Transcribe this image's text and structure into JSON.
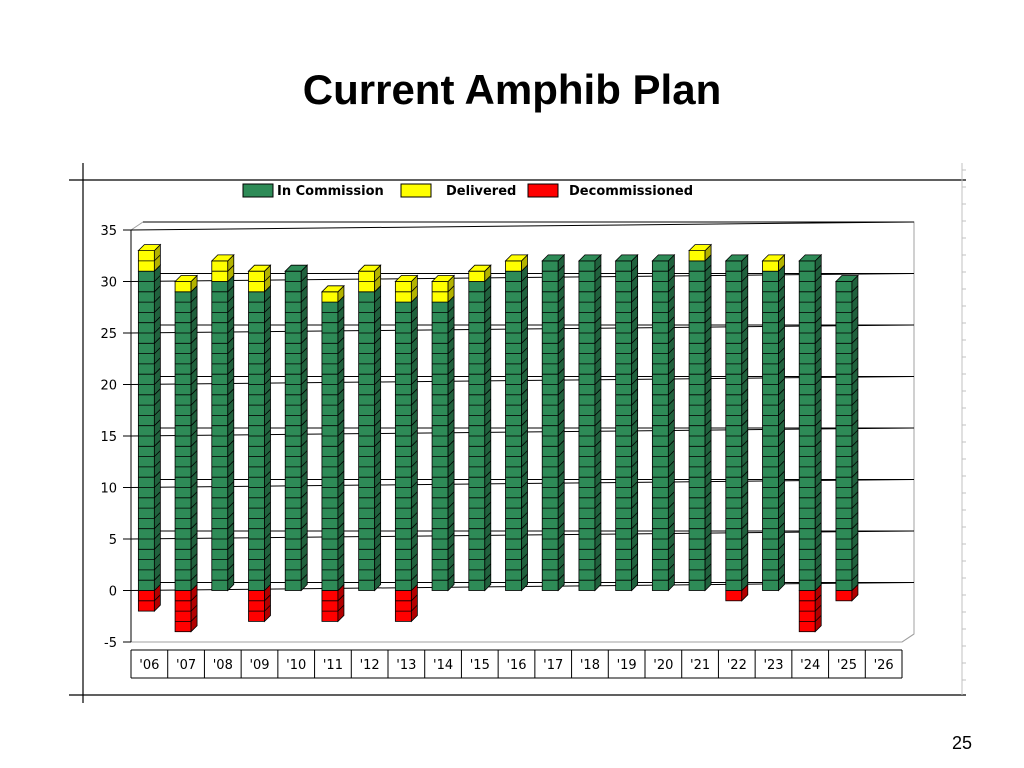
{
  "slide": {
    "title": "Current Amphib Plan",
    "page_number": "25"
  },
  "colors": {
    "in_commission": "#2e8b57",
    "delivered": "#ffff00",
    "decommissioned": "#ff0000",
    "background": "#ffffff"
  },
  "chart_data": {
    "type": "bar",
    "stacked": true,
    "three_d": true,
    "categories": [
      "'06",
      "'07",
      "'08",
      "'09",
      "'10",
      "'11",
      "'12",
      "'13",
      "'14",
      "'15",
      "'16",
      "'17",
      "'18",
      "'19",
      "'20",
      "'21",
      "'22",
      "'23",
      "'24",
      "'25",
      "'26"
    ],
    "series": [
      {
        "name": "In Commission",
        "color": "#2e8b57",
        "values": [
          31,
          29,
          30,
          29,
          31,
          28,
          29,
          28,
          28,
          30,
          31,
          32,
          32,
          32,
          32,
          32,
          32,
          31,
          32,
          30,
          0
        ]
      },
      {
        "name": "Delivered",
        "color": "#ffff00",
        "values": [
          2,
          1,
          2,
          2,
          0,
          1,
          2,
          2,
          2,
          1,
          1,
          0,
          0,
          0,
          0,
          1,
          0,
          1,
          0,
          0,
          0
        ]
      },
      {
        "name": "Decommissioned",
        "color": "#ff0000",
        "values": [
          -2,
          -4,
          0,
          -3,
          0,
          -3,
          0,
          -3,
          0,
          0,
          0,
          0,
          0,
          0,
          0,
          0,
          -1,
          0,
          -4,
          -1,
          0
        ]
      }
    ],
    "ylim": [
      -5,
      35
    ],
    "yticks": [
      -5,
      0,
      5,
      10,
      15,
      20,
      25,
      30,
      35
    ],
    "ytick_labels": [
      "-5",
      "0",
      "5",
      "10",
      "15",
      "20",
      "25",
      "30",
      "35"
    ],
    "grid": true,
    "legend_position": "top",
    "title": "",
    "xlabel": "",
    "ylabel": ""
  }
}
